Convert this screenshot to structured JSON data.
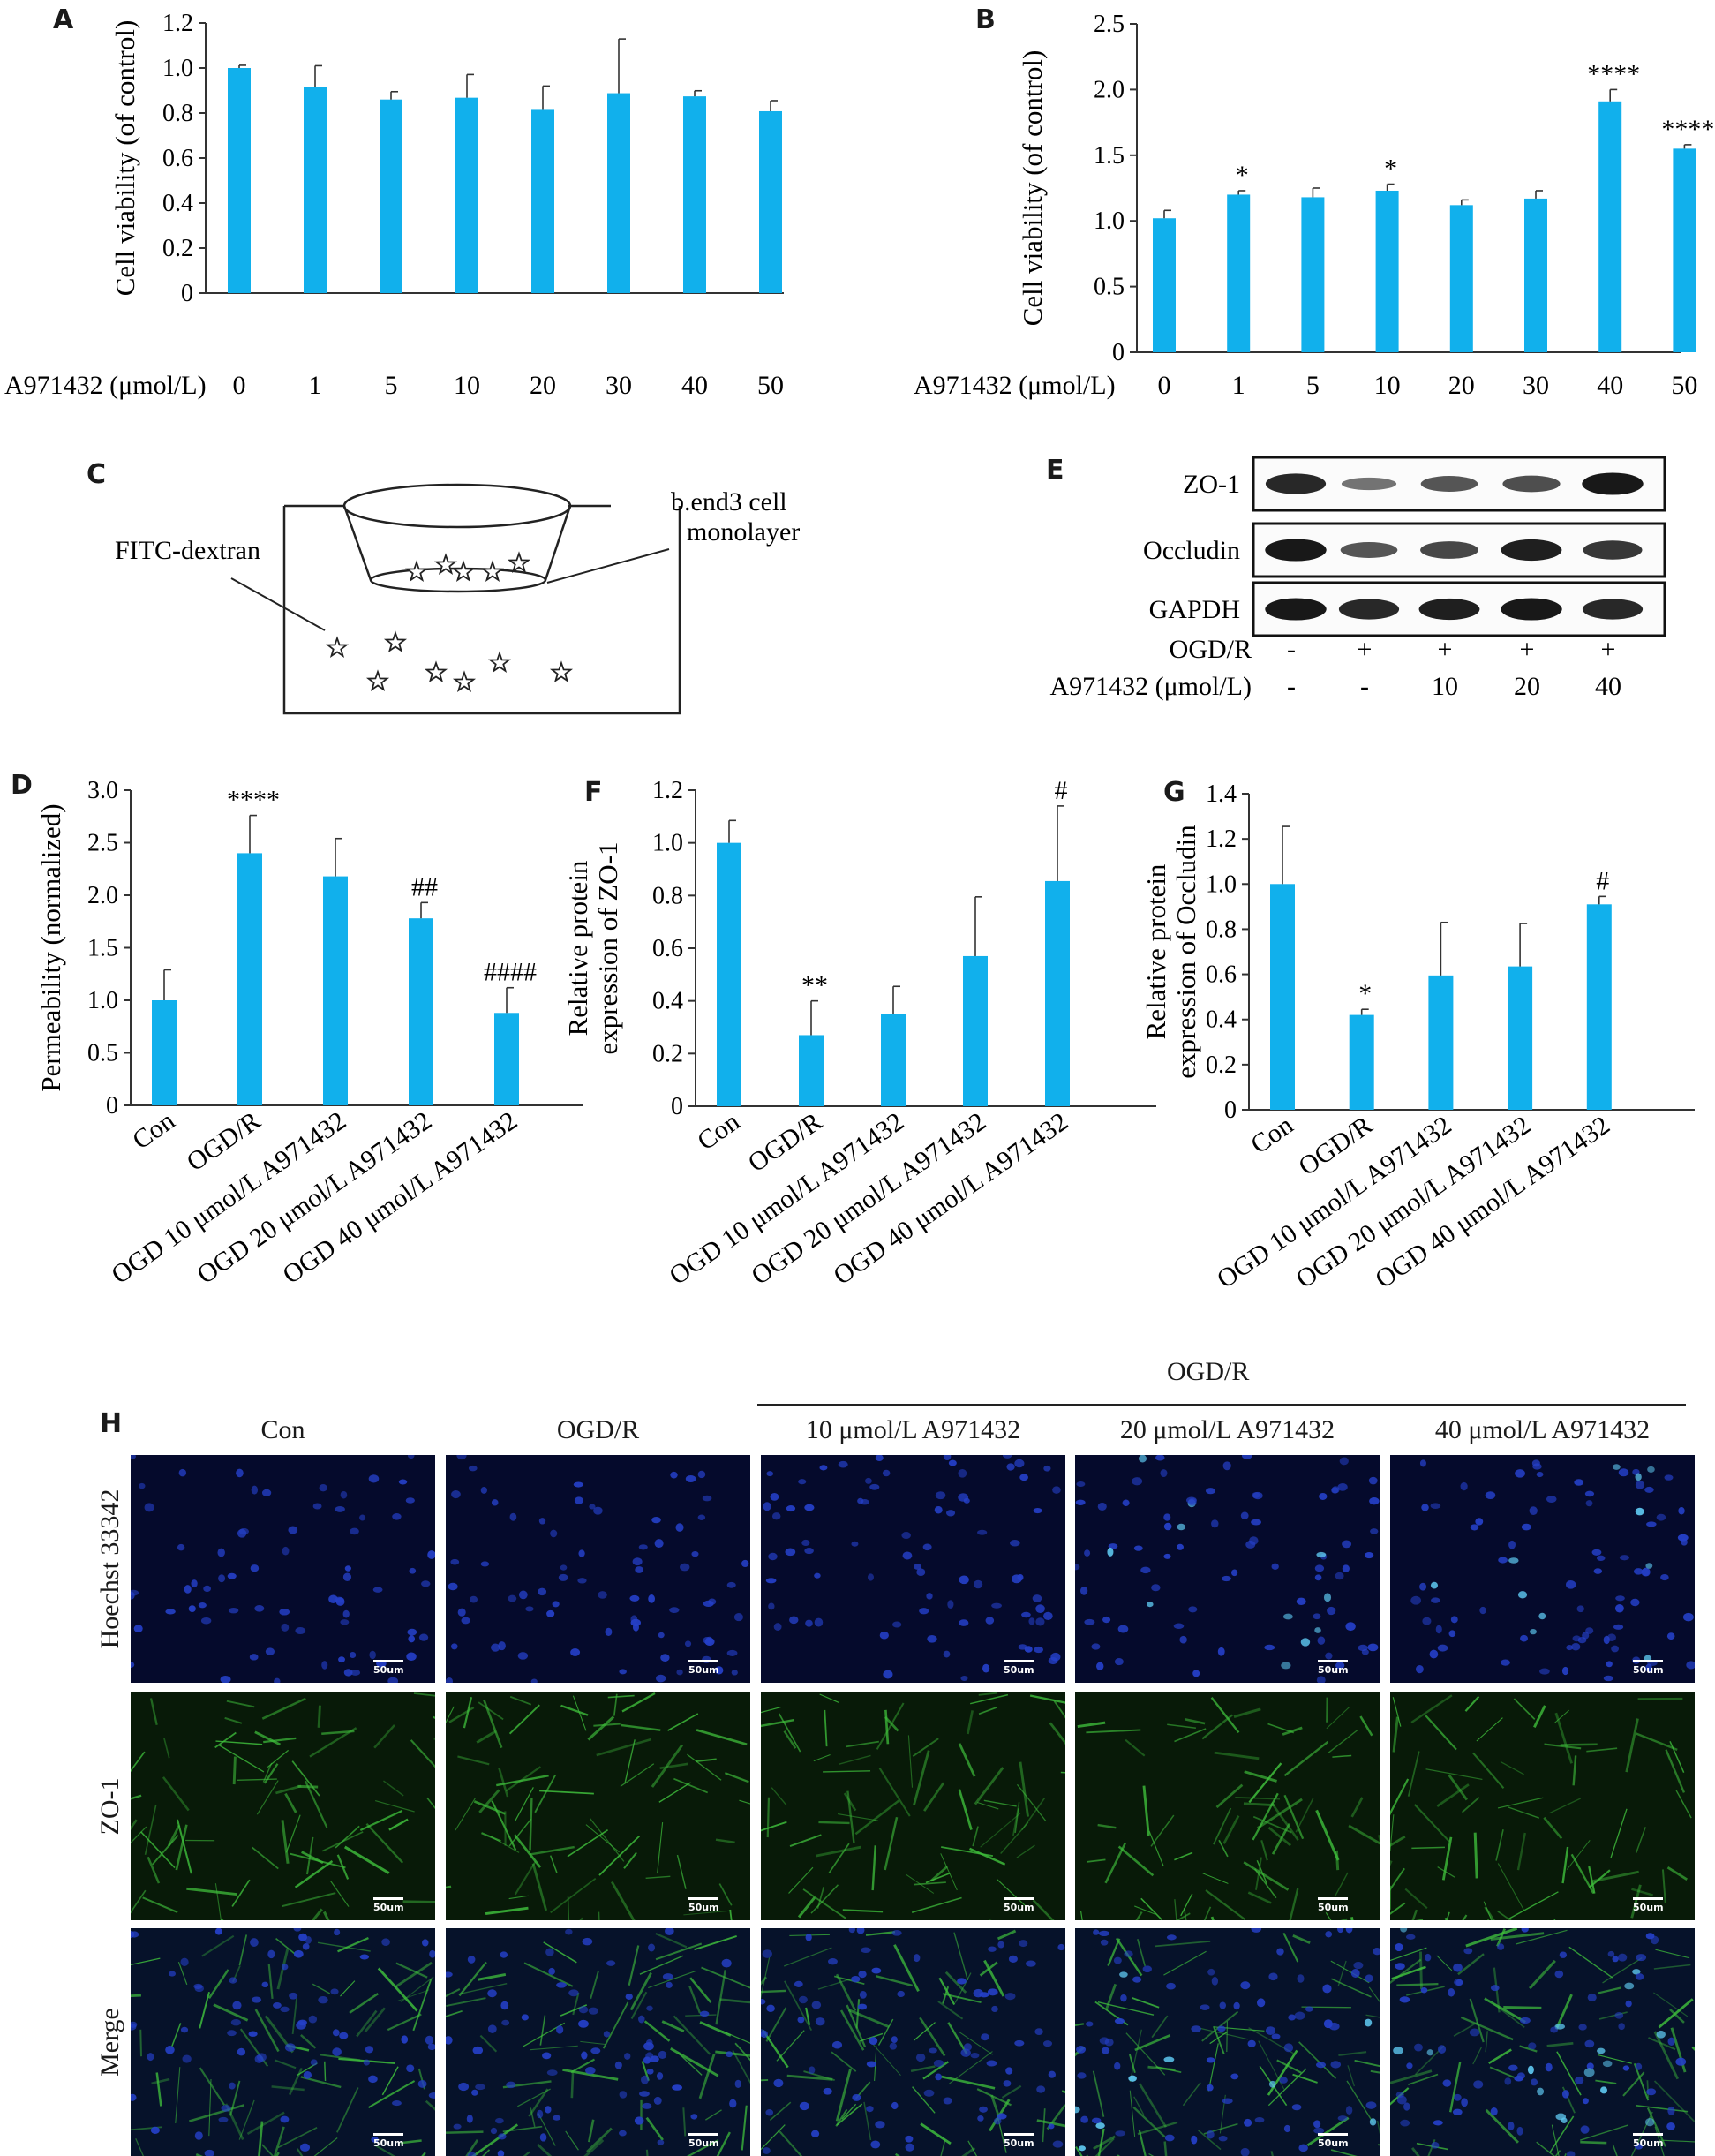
{
  "panels": {
    "A": "A",
    "B": "B",
    "C": "C",
    "D": "D",
    "E": "E",
    "F": "F",
    "G": "G",
    "H": "H"
  },
  "colors": {
    "bar": "#11b0ec",
    "axis": "#333333",
    "hoechst": "#1b2fa0",
    "zo1": "#2fae3a"
  },
  "chart_data": [
    {
      "id": "A",
      "type": "bar",
      "ylabel": "Cell viability (of control)",
      "xlabel": "A971432 (μmol/L)",
      "categories": [
        "0",
        "1",
        "5",
        "10",
        "20",
        "30",
        "40",
        "50"
      ],
      "values": [
        1.0,
        0.915,
        0.86,
        0.868,
        0.814,
        0.888,
        0.874,
        0.808
      ],
      "errors": [
        0.012,
        0.095,
        0.035,
        0.103,
        0.106,
        0.241,
        0.025,
        0.047
      ],
      "annotations": [
        "",
        "",
        "",
        "",
        "",
        "",
        "",
        ""
      ],
      "ylim": [
        0,
        1.2
      ],
      "yticks": [
        "0",
        "0.2",
        "0.4",
        "0.6",
        "0.8",
        "1.0",
        "1.2"
      ]
    },
    {
      "id": "B",
      "type": "bar",
      "ylabel": "Cell viability (of control)",
      "xlabel": "A971432 (μmol/L)",
      "categories": [
        "0",
        "1",
        "5",
        "10",
        "20",
        "30",
        "40",
        "50"
      ],
      "values": [
        1.02,
        1.2,
        1.18,
        1.23,
        1.12,
        1.17,
        1.91,
        1.55
      ],
      "errors": [
        0.06,
        0.03,
        0.07,
        0.05,
        0.04,
        0.06,
        0.09,
        0.03
      ],
      "annotations": [
        "",
        "*",
        "",
        "*",
        "",
        "",
        "****",
        "****"
      ],
      "ylim": [
        0,
        2.5
      ],
      "yticks": [
        "0",
        "0.5",
        "1.0",
        "1.5",
        "2.0",
        "2.5"
      ]
    },
    {
      "id": "D",
      "type": "bar",
      "ylabel": "Permeability (normalized)",
      "categories": [
        "Con",
        "OGD/R",
        "OGD 10 μmol/L A971432",
        "OGD 20 μmol/L A971432",
        "OGD 40 μmol/L A971432"
      ],
      "values": [
        1.0,
        2.4,
        2.18,
        1.78,
        0.88
      ],
      "errors": [
        0.29,
        0.36,
        0.36,
        0.15,
        0.24
      ],
      "annotations": [
        "",
        "****",
        "",
        "##",
        "####"
      ],
      "ylim": [
        0,
        3.0
      ],
      "yticks": [
        "0",
        "0.5",
        "1.0",
        "1.5",
        "2.0",
        "2.5",
        "3.0"
      ]
    },
    {
      "id": "F",
      "type": "bar",
      "ylabel": [
        "Relative protein",
        "expression of ZO-1"
      ],
      "categories": [
        "Con",
        "OGD/R",
        "OGD 10 μmol/L A971432",
        "OGD 20 μmol/L A971432",
        "OGD 40 μmol/L A971432"
      ],
      "values": [
        1.0,
        0.27,
        0.35,
        0.57,
        0.855
      ],
      "errors": [
        0.085,
        0.13,
        0.105,
        0.225,
        0.285
      ],
      "annotations": [
        "",
        "**",
        "",
        "",
        "#"
      ],
      "ylim": [
        0,
        1.2
      ],
      "yticks": [
        "0",
        "0.2",
        "0.4",
        "0.6",
        "0.8",
        "1.0",
        "1.2"
      ]
    },
    {
      "id": "G",
      "type": "bar",
      "ylabel": [
        "Relative protein",
        "expression of Occludin"
      ],
      "categories": [
        "Con",
        "OGD/R",
        "OGD 10 μmol/L A971432",
        "OGD 20 μmol/L A971432",
        "OGD 40 μmol/L A971432"
      ],
      "values": [
        1.0,
        0.42,
        0.595,
        0.635,
        0.91
      ],
      "errors": [
        0.255,
        0.025,
        0.235,
        0.19,
        0.035
      ],
      "annotations": [
        "",
        "*",
        "",
        "",
        "#"
      ],
      "ylim": [
        0,
        1.4
      ],
      "yticks": [
        "0",
        "0.2",
        "0.4",
        "0.6",
        "0.8",
        "1.0",
        "1.2",
        "1.4"
      ]
    }
  ],
  "diagram": {
    "left_label": "FITC-dextran",
    "right_label_line1": "b.end3 cell",
    "right_label_line2": "monolayer"
  },
  "western": {
    "rows": [
      {
        "name": "ZO-1",
        "bands": [
          0.85,
          0.35,
          0.55,
          0.6,
          0.95
        ]
      },
      {
        "name": "Occludin",
        "bands": [
          0.95,
          0.55,
          0.65,
          0.9,
          0.75
        ]
      },
      {
        "name": "GAPDH",
        "bands": [
          0.95,
          0.85,
          0.9,
          0.95,
          0.85
        ]
      }
    ],
    "cond_rows": [
      {
        "label": "OGD/R",
        "values": [
          "-",
          "+",
          "+",
          "+",
          "+"
        ]
      },
      {
        "label": "A971432 (μmol/L)",
        "values": [
          "-",
          "-",
          "10",
          "20",
          "40"
        ]
      }
    ]
  },
  "micro": {
    "group_label": "OGD/R",
    "columns": [
      "Con",
      "OGD/R",
      "10 μmol/L A971432",
      "20 μmol/L A971432",
      "40 μmol/L A971432"
    ],
    "rows": [
      "Hoechst 33342",
      "ZO-1",
      "Merge"
    ],
    "scale": "50um"
  }
}
